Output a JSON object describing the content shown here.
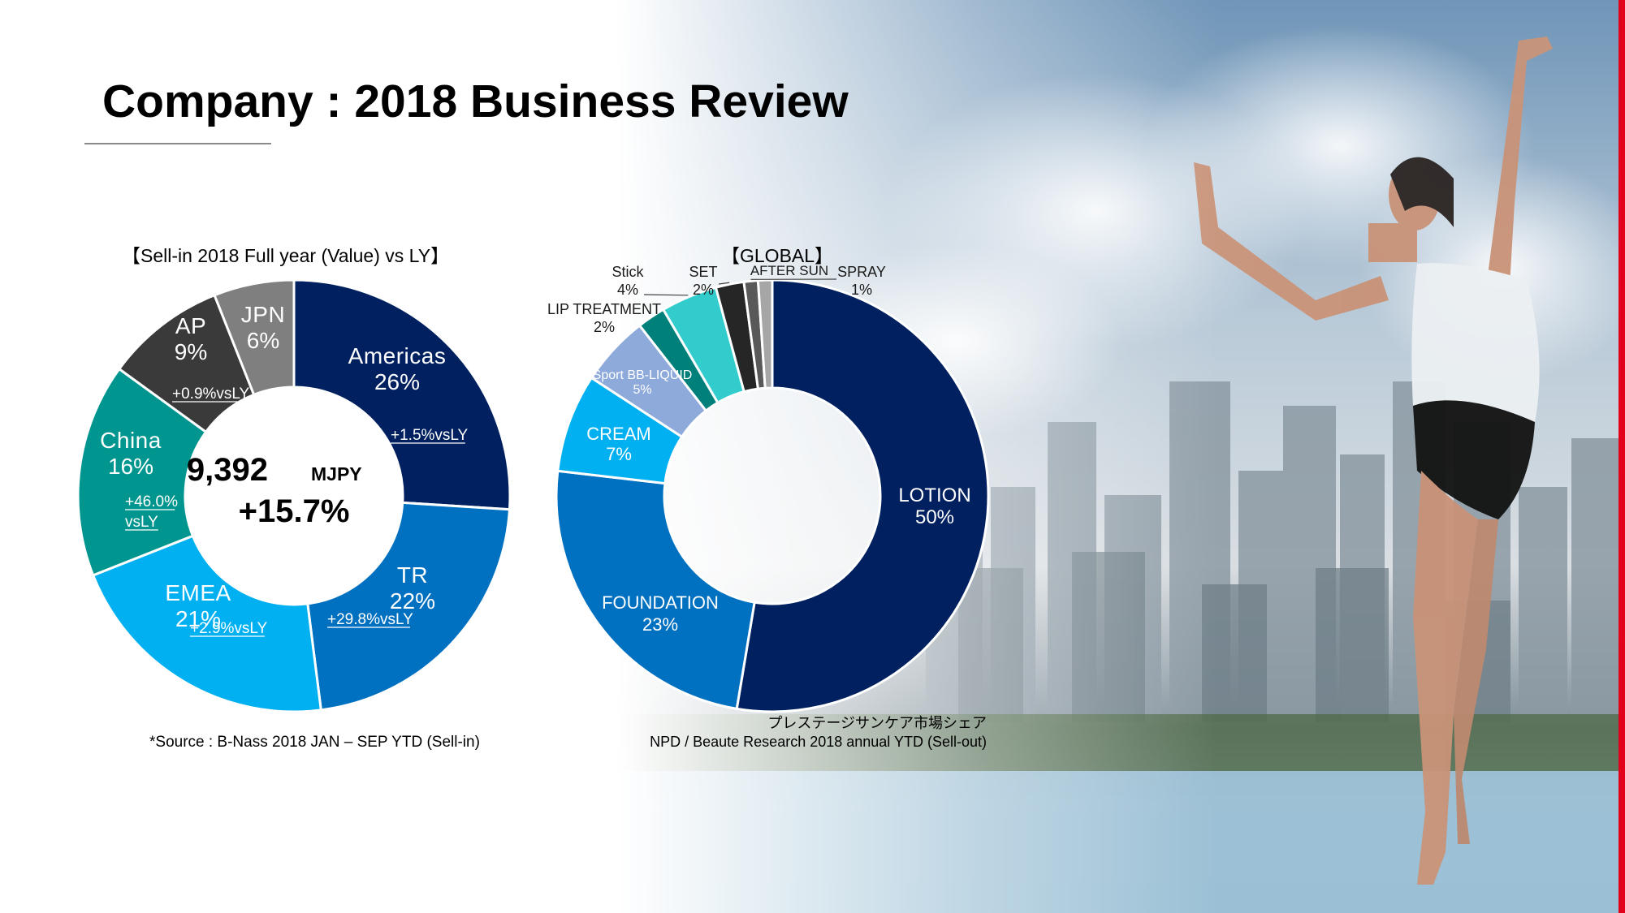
{
  "title": "Company : 2018 Business Review",
  "colors": {
    "accent_red": "#e2001a",
    "navy": "#002060",
    "blue": "#0070c0",
    "sky": "#00b0f0",
    "teal": "#00968f"
  },
  "chart_data": [
    {
      "type": "donut",
      "title": "【Sell-in 2018 Full year (Value) vs LY】",
      "center": {
        "value": "9,392",
        "unit": "MJPY",
        "growth": "+15.7%"
      },
      "series": [
        {
          "label": "Americas",
          "percent_label": "26%",
          "value": 26,
          "growth": "+1.5%vsLY",
          "color": "#002060"
        },
        {
          "label": "TR",
          "percent_label": "22%",
          "value": 22,
          "growth": "+29.8%vsLY",
          "color": "#0070c0"
        },
        {
          "label": "EMEA",
          "percent_label": "21%",
          "value": 21,
          "growth": "+2.9%vsLY",
          "color": "#00b0f0"
        },
        {
          "label": "China",
          "percent_label": "16%",
          "value": 16,
          "growth": "+46.0% vsLY",
          "growth_lines": [
            "+46.0%",
            "vsLY"
          ],
          "color": "#00968f"
        },
        {
          "label": "AP",
          "percent_label": "9%",
          "value": 9,
          "growth": "+0.9%vsLY",
          "color": "#3a3a3a"
        },
        {
          "label": "JPN",
          "percent_label": "6%",
          "value": 6,
          "growth": "",
          "color": "#7f7f7f"
        }
      ],
      "source": "*Source : B-Nass 2018 JAN – SEP YTD (Sell-in)"
    },
    {
      "type": "donut",
      "title": "【GLOBAL】",
      "series": [
        {
          "label": "LOTION",
          "percent_label": "50%",
          "value": 50,
          "color": "#002060"
        },
        {
          "label": "FOUNDATION",
          "percent_label": "23%",
          "value": 23,
          "color": "#0070c0"
        },
        {
          "label": "CREAM",
          "percent_label": "7%",
          "value": 7,
          "color": "#00b0f0"
        },
        {
          "label": "Sport BB-LIQUID",
          "percent_label": "5%",
          "value": 5,
          "color": "#8eaadb"
        },
        {
          "label": "LIP TREATMENT",
          "percent_label": "2%",
          "value": 2,
          "color": "#00807a"
        },
        {
          "label": "Stick",
          "percent_label": "4%",
          "value": 4,
          "color": "#33cccc"
        },
        {
          "label": "SET",
          "percent_label": "2%",
          "value": 2,
          "color": "#262626"
        },
        {
          "label": "AFTER SUN",
          "percent_label": "1%",
          "value": 1,
          "color": "#595959"
        },
        {
          "label": "SPRAY",
          "percent_label": "1%",
          "value": 1,
          "color": "#a6a6a6"
        }
      ],
      "source_lines": [
        "プレステージサンケア市場シェア",
        "NPD / Beaute Research 2018 annual YTD (Sell-out)"
      ]
    }
  ]
}
